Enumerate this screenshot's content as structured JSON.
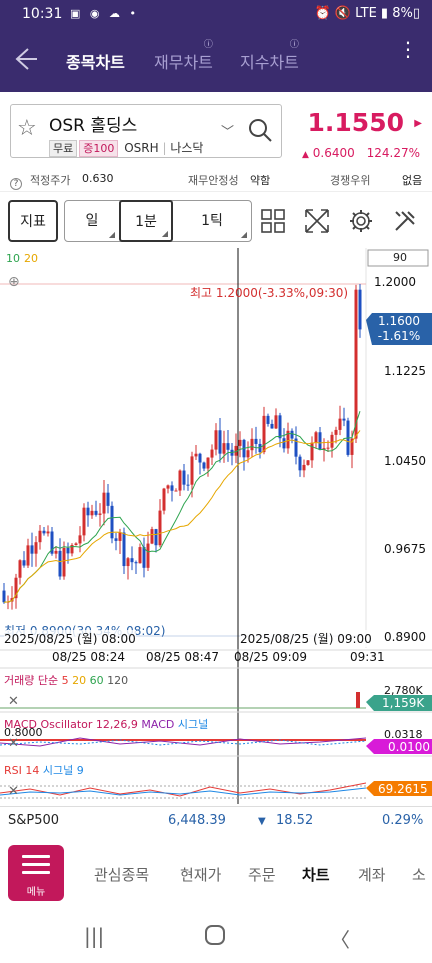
{
  "status": {
    "time": "10:31",
    "left_icons": "▣ ◉ ☁ •",
    "right_text": "⏰ 🔇 LTE ▮ 8%▯"
  },
  "header": {
    "tabs": [
      {
        "label": "종목차트",
        "active": true
      },
      {
        "label": "재무차트",
        "active": false
      },
      {
        "label": "지수차트",
        "active": false
      }
    ]
  },
  "stock": {
    "name": "OSR 홀딩스",
    "tag_free": "무료",
    "tag_margin": "증100",
    "ticker": "OSRH",
    "market": "나스닥",
    "price": "1.1550",
    "change": "0.6400",
    "change_pct": "124.27%"
  },
  "info": {
    "fair_label": "적정주가",
    "fair_value": "0.630",
    "fin_label": "재무안정성",
    "fin_value": "약함",
    "comp_label": "경쟁우위",
    "comp_value": "없음"
  },
  "toolbar": {
    "indicator": "지표",
    "day": "일",
    "minute": "1분",
    "tick": "1틱"
  },
  "chart": {
    "ma_label_a": "10",
    "ma_label_b": "20",
    "price_box": "90",
    "high_label": "최고 1.2000(-3.33%,09:30)",
    "low_label": "최저 0.8900(30.34%,08:02)",
    "current_price": "1.1600",
    "current_pct": "-1.61%",
    "y_ticks": [
      "1.2000",
      "1.1225",
      "1.0450",
      "0.9675",
      "0.8900"
    ],
    "date_left": "2025/08/25 (월) 08:00",
    "date_right": "2025/08/25 (월) 09:00",
    "x_ticks": [
      "08/25 08:24",
      "08/25 08:47",
      "08/25 09:09",
      "09:31"
    ],
    "volume_label": "거래량 단순",
    "volume_mas": [
      "5",
      "20",
      "60",
      "120"
    ],
    "volume_axis": "2,780K",
    "volume_value": "1,159K",
    "macd_label": "MACD Oscillator 12,26,9",
    "macd_label2": "MACD",
    "macd_label3": "시그널",
    "macd_axis_top": "0.0318",
    "macd_axis_left": "0.8000",
    "macd_value": "0.0100",
    "rsi_label": "RSI 14",
    "rsi_label2": "시그널 9",
    "rsi_value": "69.2615"
  },
  "chart_data": {
    "type": "candlestick",
    "ylim": [
      0.89,
      1.2
    ],
    "high": 1.2,
    "low": 0.89,
    "current": 1.16
  },
  "index": {
    "name": "S&P500",
    "value": "6,448.39",
    "change": "18.52",
    "pct": "0.29%"
  },
  "nav": {
    "menu": "메뉴",
    "items": [
      {
        "label": "관심종목",
        "active": false
      },
      {
        "label": "현재가",
        "active": false
      },
      {
        "label": "주문",
        "active": false
      },
      {
        "label": "차트",
        "active": true
      },
      {
        "label": "계좌",
        "active": false
      },
      {
        "label": "소",
        "active": false
      }
    ]
  }
}
